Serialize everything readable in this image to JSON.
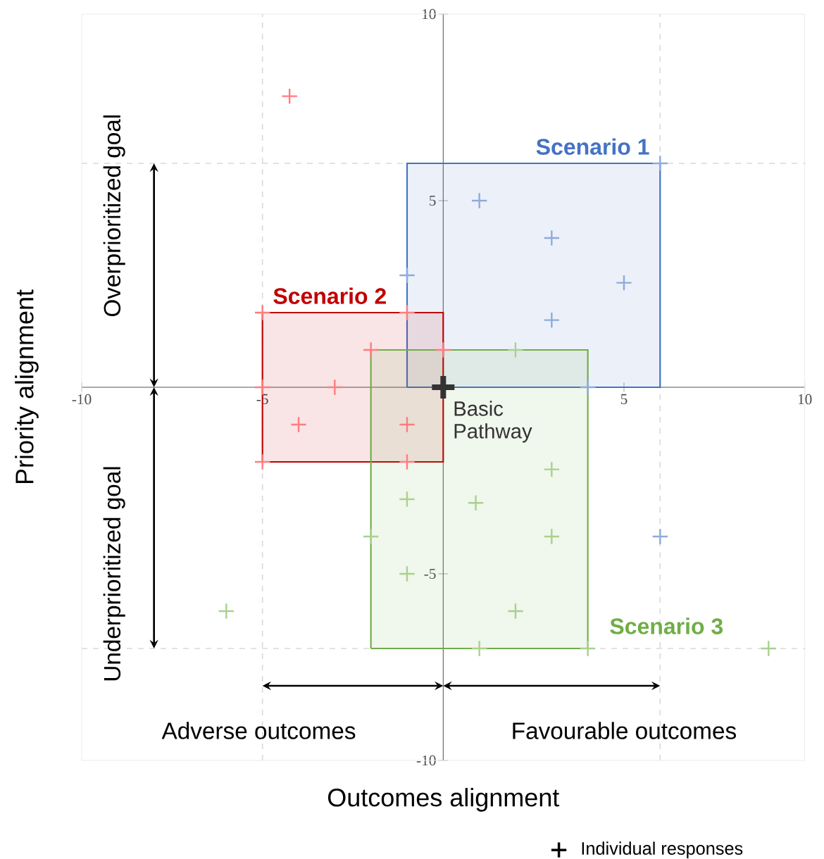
{
  "chart_data": {
    "type": "scatter",
    "xlabel": "Outcomes alignment",
    "ylabel": "Priority alignment",
    "legend_title": "Individual responses",
    "xlim": [
      -10,
      10
    ],
    "ylim": [
      -10,
      10
    ],
    "xticks": [
      -10,
      -5,
      5,
      10
    ],
    "yticks": [
      -10,
      -5,
      5,
      10
    ],
    "grid": false,
    "marker": "cross",
    "series": [
      {
        "type": "area",
        "marker": "none",
        "name": "Scenario 1",
        "color": "#4472c4",
        "x": [
          -1,
          6,
          6,
          -1,
          -1
        ],
        "values": [
          0,
          0,
          6,
          6,
          0
        ]
      },
      {
        "type": "area",
        "marker": "none",
        "name": "Scenario 2",
        "color": "#c00000",
        "x": [
          -5,
          0,
          0,
          -5,
          -5
        ],
        "values": [
          -2,
          -2,
          2,
          2,
          -2
        ]
      },
      {
        "type": "area",
        "marker": "none",
        "name": "Scenario 3",
        "color": "#70ad47",
        "x": [
          -2,
          4,
          4,
          -2,
          -2
        ],
        "values": [
          -7,
          -7,
          1,
          1,
          -7
        ]
      },
      {
        "color": "#8faadc",
        "x": [
          -1,
          6,
          1,
          3,
          5,
          3,
          4,
          6
        ],
        "values": [
          3,
          6,
          5,
          4,
          2.8,
          1.8,
          0,
          -4
        ]
      },
      {
        "color": "#ff7c80",
        "x": [
          -4.25,
          -5,
          -1,
          -2,
          0,
          -5,
          -3,
          -4,
          -1,
          -5,
          -1
        ],
        "values": [
          7.8,
          2,
          2,
          1,
          1,
          0,
          0,
          -1,
          -1,
          -2,
          -2
        ]
      },
      {
        "color": "#a9d18e",
        "x": [
          2,
          -2,
          -1,
          -1,
          -6,
          3,
          0.9,
          3,
          2,
          1,
          4,
          9
        ],
        "values": [
          1,
          -4,
          -3,
          -5,
          -6,
          -2.2,
          -3.1,
          -4,
          -6,
          -7,
          -7,
          -7
        ]
      },
      {
        "name": "Basic Pathway",
        "color": "#333333",
        "x": [
          0
        ],
        "values": [
          0
        ]
      }
    ],
    "ref_lines": [
      {
        "axis": "x",
        "value": -5,
        "color": "#d9d9d9",
        "line_style": "dashed"
      },
      {
        "axis": "x",
        "value": 6,
        "color": "#d9d9d9",
        "line_style": "dashed"
      },
      {
        "axis": "y",
        "value": 6,
        "color": "#d9d9d9",
        "line_style": "dashed"
      },
      {
        "axis": "y",
        "value": -7,
        "color": "#d9d9d9",
        "line_style": "dashed"
      }
    ],
    "annotations": [
      "Overprioritized goal",
      "Underprioritized goal",
      "Adverse outcomes",
      "Favourable outcomes"
    ]
  }
}
